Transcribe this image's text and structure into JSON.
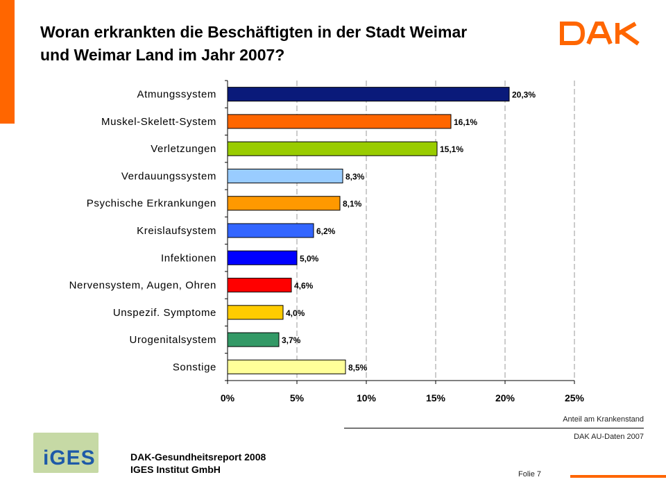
{
  "title": {
    "line1": "Woran erkrankten die Beschäftigten in der Stadt Weimar",
    "line2": "und Weimar Land im Jahr 2007?"
  },
  "logo": {
    "text": "DAK",
    "color": "#FF6600"
  },
  "chart_data": {
    "type": "bar",
    "orientation": "horizontal",
    "categories": [
      "Atmungssystem",
      "Muskel-Skelett-System",
      "Verletzungen",
      "Verdauungssystem",
      "Psychische Erkrankungen",
      "Kreislaufsystem",
      "Infektionen",
      "Nervensystem, Augen, Ohren",
      "Unspezif. Symptome",
      "Urogenitalsystem",
      "Sonstige"
    ],
    "values": [
      20.3,
      16.1,
      15.1,
      8.3,
      8.1,
      6.2,
      5.0,
      4.6,
      4.0,
      3.7,
      8.5
    ],
    "value_labels": [
      "20,3%",
      "16,1%",
      "15,1%",
      "8,3%",
      "8,1%",
      "6,2%",
      "5,0%",
      "4,6%",
      "4,0%",
      "3,7%",
      "8,5%"
    ],
    "colors": [
      "#0A1A7A",
      "#FF6600",
      "#99CC00",
      "#99CCFF",
      "#FF9900",
      "#3366FF",
      "#0000FF",
      "#FF0000",
      "#FFCC00",
      "#339966",
      "#FFFF99"
    ],
    "xlim": [
      0,
      25
    ],
    "xticks": [
      0,
      5,
      10,
      15,
      20,
      25
    ],
    "xtick_labels": [
      "0%",
      "5%",
      "10%",
      "15%",
      "20%",
      "25%"
    ],
    "grid": true,
    "xlabel": "",
    "ylabel": ""
  },
  "footer": {
    "source_label": "Anteil am Krankenstand",
    "source_data": "DAK AU-Daten 2007",
    "iges_logo_text": "iGES",
    "report_line1": "DAK-Gesundheitsreport 2008",
    "report_line2": "IGES Institut GmbH",
    "slide": "Folie 7"
  }
}
